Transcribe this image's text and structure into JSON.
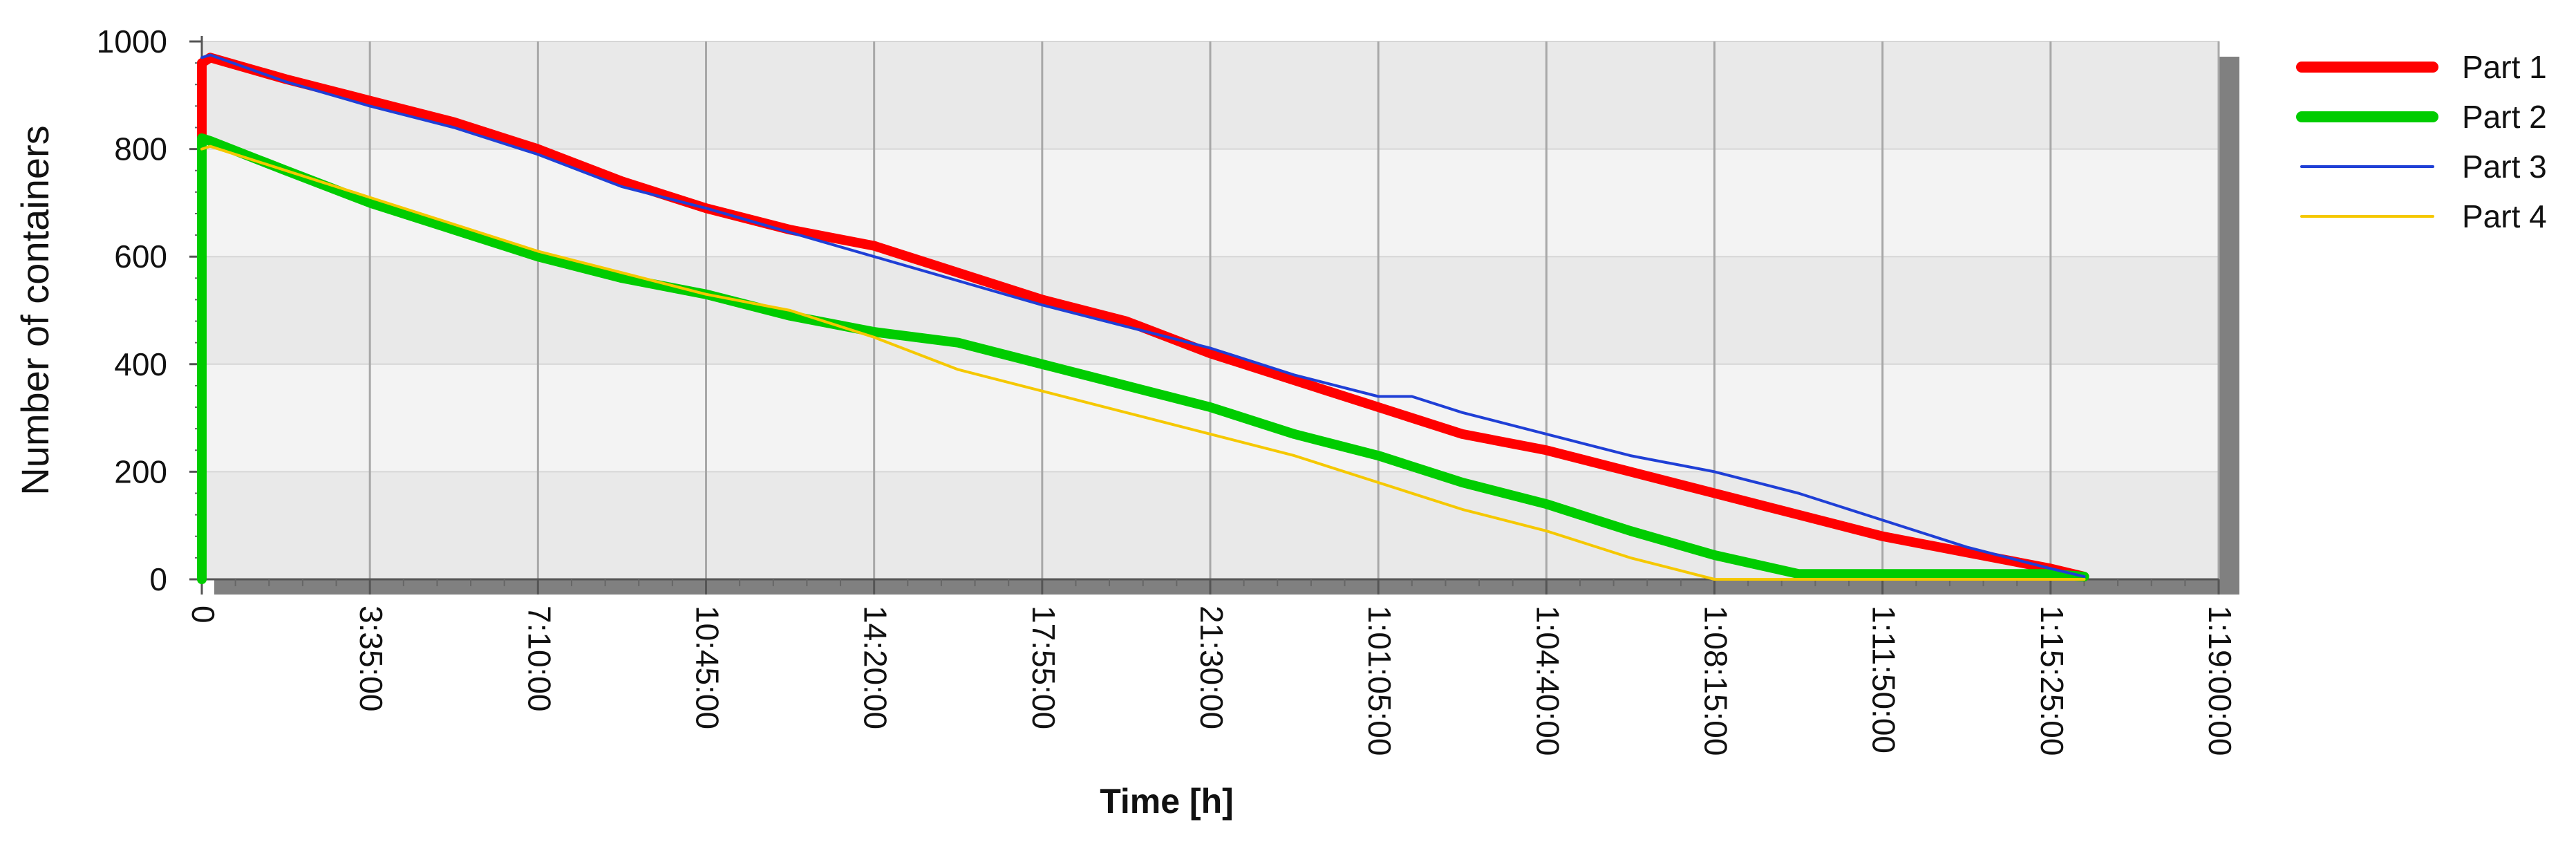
{
  "chart_data": {
    "type": "line",
    "title": "",
    "xlabel": "Time [h]",
    "ylabel": "Number of containers",
    "ylim": [
      0,
      1000
    ],
    "yticks": [
      0,
      200,
      400,
      600,
      800,
      1000
    ],
    "xlim": [
      0,
      12
    ],
    "x_tick_labels": [
      "0",
      "3:35:00",
      "7:10:00",
      "10:45:00",
      "14:20:00",
      "17:55:00",
      "21:30:00",
      "1:01:05:00",
      "1:04:40:00",
      "1:08:15:00",
      "1:11:50:00",
      "1:15:25:00",
      "1:19:00:00"
    ],
    "grid": true,
    "legend_position": "right",
    "series": [
      {
        "name": "Part 1",
        "color": "#ff0000",
        "width": "thick",
        "x": [
          0,
          0,
          0.05,
          0.5,
          1.0,
          1.5,
          2.0,
          2.5,
          3.0,
          3.5,
          4.0,
          4.2,
          4.5,
          5.0,
          5.5,
          6.0,
          6.5,
          7.0,
          7.5,
          8.0,
          8.5,
          9.0,
          9.5,
          10.0,
          10.5,
          11.0,
          11.2
        ],
        "values": [
          820,
          960,
          970,
          930,
          890,
          850,
          800,
          740,
          690,
          650,
          620,
          600,
          570,
          520,
          480,
          420,
          370,
          320,
          270,
          240,
          200,
          160,
          120,
          80,
          50,
          20,
          5
        ]
      },
      {
        "name": "Part 2",
        "color": "#00cc00",
        "width": "thick",
        "x": [
          0,
          0,
          0.05,
          0.5,
          1.0,
          1.5,
          2.0,
          2.5,
          3.0,
          3.5,
          4.0,
          4.5,
          5.0,
          5.5,
          6.0,
          6.5,
          7.0,
          7.5,
          8.0,
          8.5,
          9.0,
          9.5,
          10.0,
          10.5,
          11.0,
          11.2
        ],
        "values": [
          0,
          820,
          815,
          760,
          700,
          650,
          600,
          560,
          530,
          490,
          460,
          440,
          400,
          360,
          320,
          270,
          230,
          180,
          140,
          90,
          45,
          10,
          10,
          10,
          10,
          5
        ]
      },
      {
        "name": "Part 3",
        "color": "#1f3fd6",
        "width": "thin",
        "x": [
          0,
          0.05,
          0.5,
          1.0,
          1.5,
          2.0,
          2.5,
          3.0,
          3.5,
          4.0,
          4.5,
          5.0,
          5.5,
          6.0,
          6.5,
          7.0,
          7.2,
          7.5,
          8.0,
          8.5,
          9.0,
          9.5,
          10.0,
          10.5,
          11.0,
          11.2
        ],
        "values": [
          970,
          975,
          925,
          880,
          840,
          790,
          730,
          690,
          645,
          600,
          555,
          510,
          470,
          430,
          380,
          340,
          340,
          310,
          270,
          230,
          200,
          160,
          110,
          60,
          20,
          5
        ]
      },
      {
        "name": "Part 4",
        "color": "#f5c800",
        "width": "thin",
        "x": [
          0,
          0.05,
          0.5,
          1.0,
          1.5,
          2.0,
          2.5,
          3.0,
          3.5,
          4.0,
          4.5,
          5.0,
          5.5,
          6.0,
          6.5,
          7.0,
          7.5,
          8.0,
          8.5,
          9.0,
          9.5,
          10.0,
          10.5,
          11.0,
          11.2
        ],
        "values": [
          800,
          805,
          760,
          710,
          660,
          610,
          570,
          530,
          500,
          450,
          390,
          350,
          310,
          270,
          230,
          180,
          130,
          90,
          40,
          0,
          0,
          0,
          0,
          0,
          0
        ]
      }
    ]
  }
}
